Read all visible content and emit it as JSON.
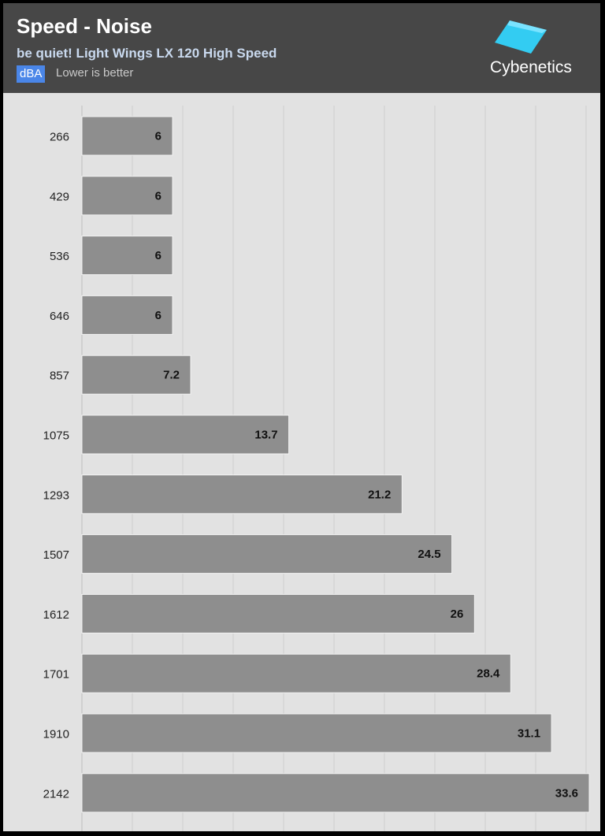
{
  "header": {
    "title": "Speed - Noise",
    "subtitle": "be quiet! Light Wings LX 120 High Speed",
    "unit": "dBA",
    "note": "Lower is better",
    "logo_text": "Cybenetics",
    "logo_icon": "cyan-square-icon"
  },
  "colors": {
    "header_bg": "#474747",
    "plot_bg": "#e2e2e2",
    "bar": "#8e8e8e",
    "badge": "#4a86e8",
    "logo_accent": "#33ccf2"
  },
  "chart_data": {
    "type": "bar",
    "orientation": "horizontal",
    "categories": [
      "266",
      "429",
      "536",
      "646",
      "857",
      "1075",
      "1293",
      "1507",
      "1612",
      "1701",
      "1910",
      "2142"
    ],
    "values": [
      6,
      6,
      6,
      6,
      7.2,
      13.7,
      21.2,
      24.5,
      26,
      28.4,
      31.1,
      33.6
    ],
    "value_labels": [
      "6",
      "6",
      "6",
      "6",
      "7.2",
      "13.7",
      "21.2",
      "24.5",
      "26",
      "28.4",
      "31.1",
      "33.6"
    ],
    "xlim": [
      0,
      33.6
    ],
    "grid": true,
    "legend": "none"
  }
}
